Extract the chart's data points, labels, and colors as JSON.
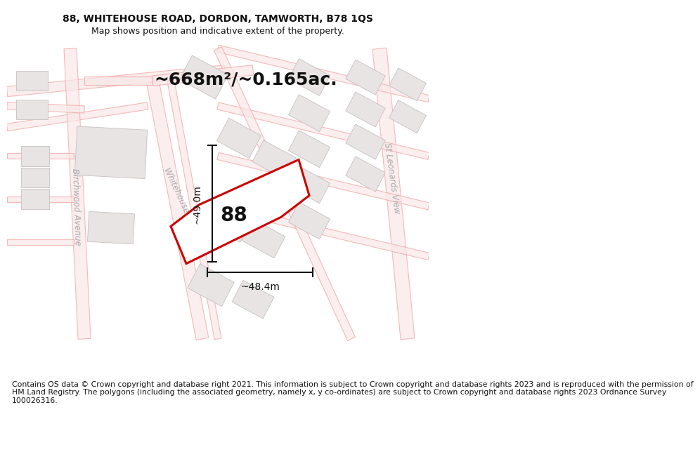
{
  "title": "88, WHITEHOUSE ROAD, DORDON, TAMWORTH, B78 1QS",
  "subtitle": "Map shows position and indicative extent of the property.",
  "footer": "Contains OS data © Crown copyright and database right 2021. This information is subject to Crown copyright and database rights 2023 and is reproduced with the permission of\nHM Land Registry. The polygons (including the associated geometry, namely x, y co-ordinates) are subject to Crown copyright and database rights 2023 Ordnance Survey\n100026316.",
  "area_text": "~668m²/~0.165ac.",
  "dim_vertical": "~49.0m",
  "dim_horizontal": "~48.4m",
  "road_label_main": "Whitehouse Road",
  "road_label_left": "Birchwood Avenue",
  "road_label_right": "St Leonards View",
  "property_number": "88",
  "map_bg": "#ffffff",
  "road_line_color": "#f0a0a0",
  "road_fill_color": "#f8e8e8",
  "building_fill": "#e8e4e4",
  "building_edge": "#c8c0c0",
  "property_color": "#cc0000",
  "property_lw": 2.2,
  "dim_color": "#111111",
  "text_color": "#111111",
  "road_text_color": "#aaaaaa",
  "title_fontsize": 10,
  "subtitle_fontsize": 9,
  "footer_fontsize": 7.8,
  "area_fontsize": 18,
  "number_fontsize": 20,
  "dim_fontsize": 10,
  "road_label_fontsize": 9
}
